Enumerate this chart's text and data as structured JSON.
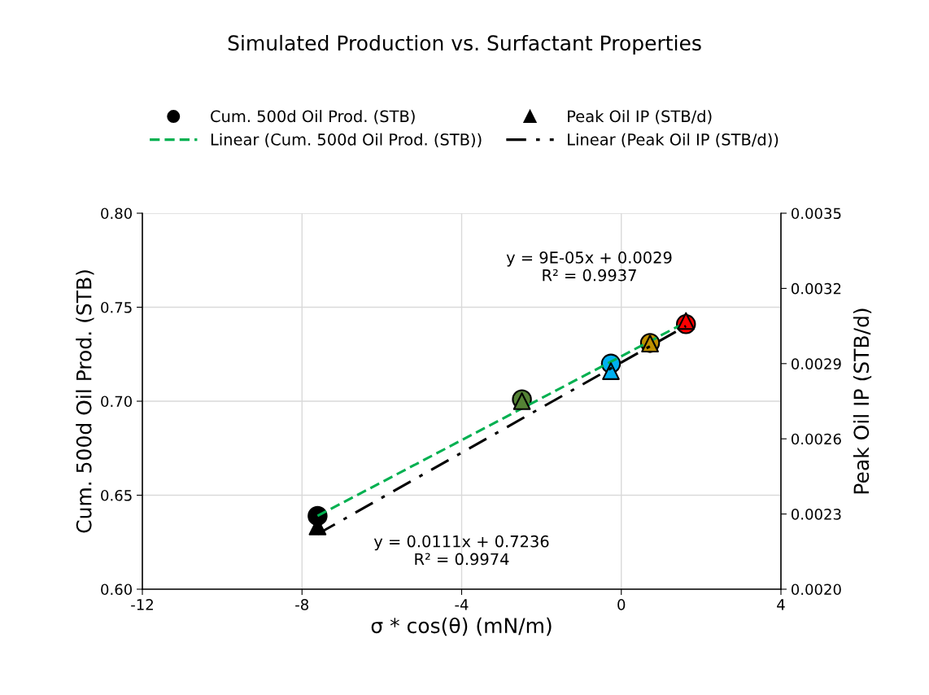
{
  "chart_data": {
    "type": "scatter",
    "title": "Simulated Production vs. Surfactant Properties",
    "xlabel": "σ * cos(θ) (mN/m)",
    "ylabel": "Cum. 500d Oil Prod. (STB)",
    "y2label": "Peak Oil IP (STB/d)",
    "series": [
      {
        "name": "Cum. 500d Oil Prod. (STB)",
        "marker": "circle",
        "x": [
          -7.61,
          -2.49,
          -0.26,
          0.72,
          1.62
        ],
        "values": [
          0.639,
          0.701,
          0.72,
          0.731,
          0.741
        ],
        "colors": [
          "#000000",
          "#548235",
          "#00b0f0",
          "#bf9000",
          "#ff0000"
        ]
      },
      {
        "name": "Peak Oil IP (STB/d)",
        "marker": "triangle",
        "axis": "y2",
        "x": [
          -7.61,
          -2.49,
          -0.26,
          0.72,
          1.62
        ],
        "values": [
          0.00225,
          0.00275,
          0.00287,
          0.00298,
          0.00307
        ],
        "colors": [
          "#000000",
          "#548235",
          "#00b0f0",
          "#bf9000",
          "#ff0000"
        ]
      },
      {
        "name": "Linear (Cum. 500d Oil Prod. (STB))",
        "type": "line",
        "line_style": "dashed",
        "color": "#00b050",
        "x": [
          -7.61,
          1.62
        ],
        "values": [
          0.639,
          0.742
        ]
      },
      {
        "name": "Linear (Peak Oil IP (STB/d))",
        "type": "line",
        "line_style": "dashdot",
        "color": "#000000",
        "axis": "y2",
        "x": [
          -7.61,
          1.62
        ],
        "values": [
          0.00222,
          0.00305
        ]
      }
    ],
    "annotations": [
      "y = 9E-05x + 0.0029\nR² = 0.9937",
      "y = 0.0111x + 0.7236\nR² = 0.9974"
    ],
    "xlim": [
      -12,
      4
    ],
    "xticks": [
      -12,
      -8,
      -4,
      0,
      4
    ],
    "ylim": [
      0.6,
      0.8
    ],
    "yticks": [
      {
        "value": 0.6,
        "label": "0.60"
      },
      {
        "value": 0.65,
        "label": "0.65"
      },
      {
        "value": 0.7,
        "label": "0.70"
      },
      {
        "value": 0.75,
        "label": "0.75"
      },
      {
        "value": 0.8,
        "label": "0.80"
      }
    ],
    "y2lim": [
      0.002,
      0.0035
    ],
    "y2ticks": [
      {
        "value": 0.002,
        "label": "0.0020"
      },
      {
        "value": 0.0023,
        "label": "0.0023"
      },
      {
        "value": 0.0026,
        "label": "0.0026"
      },
      {
        "value": 0.0029,
        "label": "0.0029"
      },
      {
        "value": 0.0032,
        "label": "0.0032"
      },
      {
        "value": 0.0035,
        "label": "0.0035"
      }
    ],
    "grid": true,
    "legend": "top"
  }
}
